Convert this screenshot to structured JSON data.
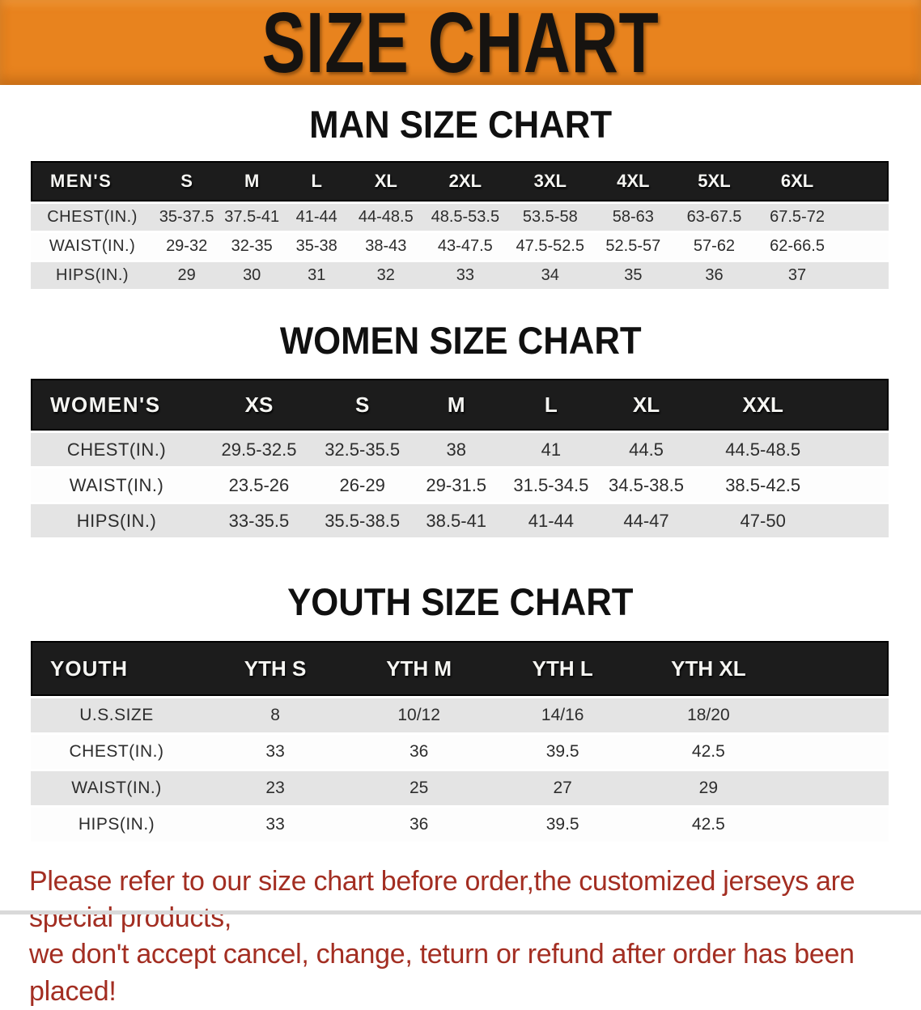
{
  "banner": {
    "title": "SIZE CHART"
  },
  "colors": {
    "banner_orange": "#e8831e",
    "bar_black": "#1c1c1c",
    "row_gray": "#e4e4e4",
    "disclaimer_red": "#a32e22"
  },
  "sections": [
    {
      "id": "men",
      "title": "MAN SIZE CHART",
      "corner_label": "MEN'S",
      "columns": [
        "S",
        "M",
        "L",
        "XL",
        "2XL",
        "3XL",
        "4XL",
        "5XL",
        "6XL"
      ],
      "rows": [
        {
          "label": "CHEST(IN.)",
          "values": [
            "35-37.5",
            "37.5-41",
            "41-44",
            "44-48.5",
            "48.5-53.5",
            "53.5-58",
            "58-63",
            "63-67.5",
            "67.5-72"
          ]
        },
        {
          "label": "WAIST(IN.)",
          "values": [
            "29-32",
            "32-35",
            "35-38",
            "38-43",
            "43-47.5",
            "47.5-52.5",
            "52.5-57",
            "57-62",
            "62-66.5"
          ]
        },
        {
          "label": "HIPS(IN.)",
          "values": [
            "29",
            "30",
            "31",
            "32",
            "33",
            "34",
            "35",
            "36",
            "37"
          ]
        }
      ]
    },
    {
      "id": "women",
      "title": "WOMEN SIZE CHART",
      "corner_label": "WOMEN'S",
      "columns": [
        "XS",
        "S",
        "M",
        "L",
        "XL",
        "XXL"
      ],
      "rows": [
        {
          "label": "CHEST(IN.)",
          "values": [
            "29.5-32.5",
            "32.5-35.5",
            "38",
            "41",
            "44.5",
            "44.5-48.5"
          ]
        },
        {
          "label": "WAIST(IN.)",
          "values": [
            "23.5-26",
            "26-29",
            "29-31.5",
            "31.5-34.5",
            "34.5-38.5",
            "38.5-42.5"
          ]
        },
        {
          "label": "HIPS(IN.)",
          "values": [
            "33-35.5",
            "35.5-38.5",
            "38.5-41",
            "41-44",
            "44-47",
            "47-50"
          ]
        }
      ]
    },
    {
      "id": "youth",
      "title": "YOUTH SIZE CHART",
      "corner_label": "YOUTH",
      "columns": [
        "YTH S",
        "YTH M",
        "YTH L",
        "YTH XL"
      ],
      "rows": [
        {
          "label": "U.S.SIZE",
          "values": [
            "8",
            "10/12",
            "14/16",
            "18/20"
          ]
        },
        {
          "label": "CHEST(IN.)",
          "values": [
            "33",
            "36",
            "39.5",
            "42.5"
          ]
        },
        {
          "label": "WAIST(IN.)",
          "values": [
            "23",
            "25",
            "27",
            "29"
          ]
        },
        {
          "label": "HIPS(IN.)",
          "values": [
            "33",
            "36",
            "39.5",
            "42.5"
          ]
        }
      ]
    }
  ],
  "disclaimer": {
    "line1": "Please refer to our size chart before order,the customized jerseys are special products,",
    "line2": "we don't accept cancel, change, teturn or refund after order has been placed!"
  }
}
